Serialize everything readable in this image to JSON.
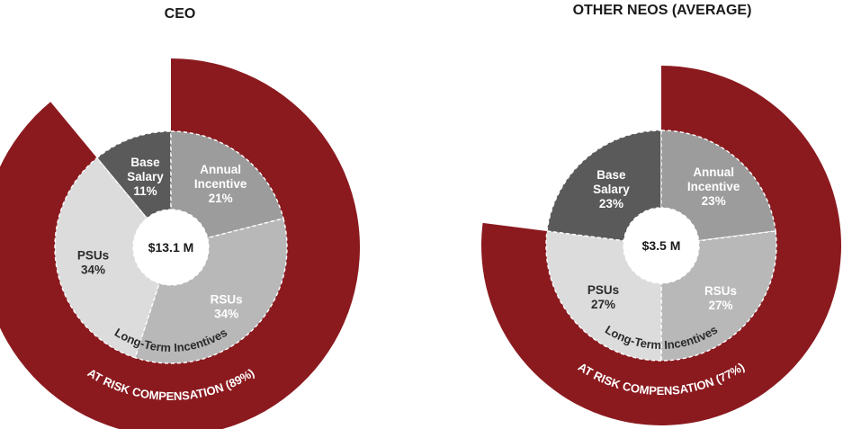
{
  "chart_data": [
    {
      "type": "pie",
      "title": "CEO",
      "center_label": "$13.1 M",
      "slices": [
        {
          "label_lines": [
            "Base",
            "Salary",
            "11%"
          ],
          "value": 11
        },
        {
          "label_lines": [
            "Annual",
            "Incentive",
            "21%"
          ],
          "value": 21
        },
        {
          "label_lines": [
            "RSUs",
            "34%"
          ],
          "value": 34
        },
        {
          "label_lines": [
            "PSUs",
            "34%"
          ],
          "value": 34
        }
      ],
      "group_label": "Long-Term Incentives",
      "outer_ring": {
        "label": "AT RISK COMPENSATION (89%)",
        "value": 89
      }
    },
    {
      "type": "pie",
      "title": "OTHER NEOS (AVERAGE)",
      "center_label": "$3.5 M",
      "slices": [
        {
          "label_lines": [
            "Base",
            "Salary",
            "23%"
          ],
          "value": 23
        },
        {
          "label_lines": [
            "Annual",
            "Incentive",
            "23%"
          ],
          "value": 23
        },
        {
          "label_lines": [
            "RSUs",
            "27%"
          ],
          "value": 27
        },
        {
          "label_lines": [
            "PSUs",
            "27%"
          ],
          "value": 27
        }
      ],
      "group_label": "Long-Term Incentives",
      "outer_ring": {
        "label": "AT RISK COMPENSATION (77%)",
        "value": 77
      }
    }
  ],
  "colors": {
    "base_salary": "#5a5a5a",
    "annual_incentive": "#9c9c9c",
    "rsus": "#b8b8b8",
    "psus": "#dcdcdc",
    "at_risk": "#8b1a1f",
    "slice_text_light": "#ffffff",
    "slice_text_dark": "#2b2b2b"
  }
}
